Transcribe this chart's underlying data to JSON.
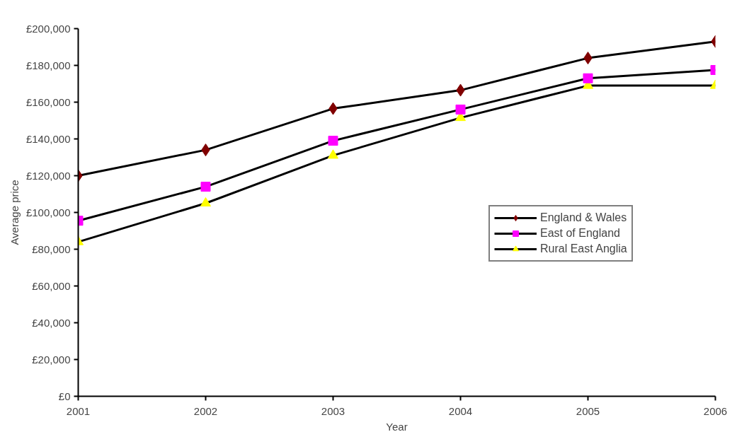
{
  "chart_data": {
    "type": "line",
    "xlabel": "Year",
    "ylabel": "Average price",
    "x": [
      2001,
      2002,
      2003,
      2004,
      2005,
      2006
    ],
    "series": [
      {
        "name": "England & Wales",
        "color": "#800000",
        "marker": "diamond",
        "values": [
          120000,
          134000,
          156500,
          166500,
          184000,
          193000
        ]
      },
      {
        "name": "East of England",
        "color": "#ff00ff",
        "marker": "square",
        "values": [
          95500,
          114000,
          139000,
          156000,
          173000,
          177500
        ]
      },
      {
        "name": "Rural East Anglia",
        "color": "#ffff00",
        "marker": "triangle",
        "values": [
          84000,
          105000,
          131000,
          151500,
          169000,
          169000
        ]
      }
    ],
    "xlim": [
      2001,
      2006
    ],
    "xticks": [
      2001,
      2002,
      2003,
      2004,
      2005,
      2006
    ],
    "ylim": [
      0,
      200000
    ],
    "yticks": [
      {
        "value": 0,
        "label": "£0"
      },
      {
        "value": 20000,
        "label": "£20,000"
      },
      {
        "value": 40000,
        "label": "£40,000"
      },
      {
        "value": 60000,
        "label": "£60,000"
      },
      {
        "value": 80000,
        "label": "£80,000"
      },
      {
        "value": 100000,
        "label": "£100,000"
      },
      {
        "value": 120000,
        "label": "£120,000"
      },
      {
        "value": 140000,
        "label": "£140,000"
      },
      {
        "value": 160000,
        "label": "£160,000"
      },
      {
        "value": 180000,
        "label": "£180,000"
      },
      {
        "value": 200000,
        "label": "£200,000"
      }
    ],
    "grid": false,
    "legend": "right",
    "line_style": "solid"
  }
}
